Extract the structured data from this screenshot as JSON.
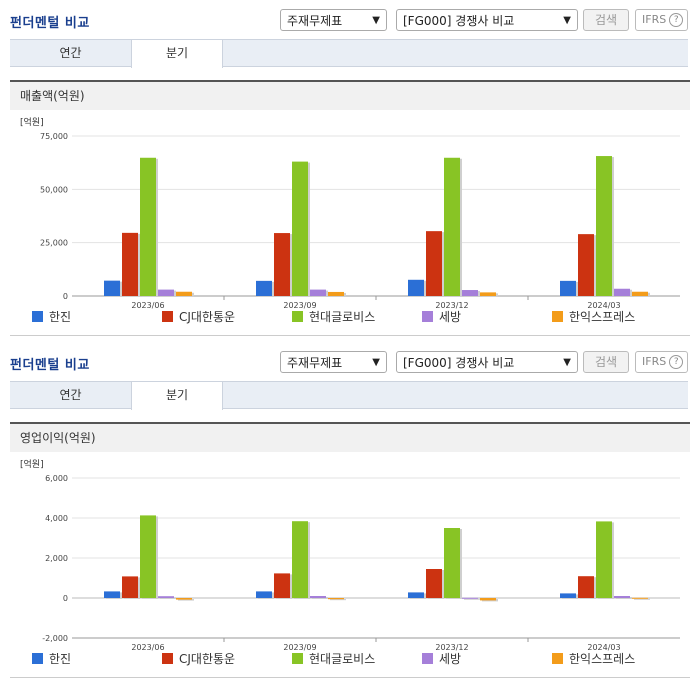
{
  "panels": [
    {
      "title": "펀더멘털 비교",
      "select1": "주재무제표",
      "select2": "[FG000] 경쟁사 비교",
      "search_label": "검색",
      "ifrs_label": "IFRS",
      "help_label": "?",
      "tabs": [
        {
          "label": "연간"
        },
        {
          "label": "분기"
        }
      ],
      "active_tab": 1,
      "chart_title": "매출액(억원)"
    },
    {
      "title": "펀더멘털 비교",
      "select1": "주재무제표",
      "select2": "[FG000] 경쟁사 비교",
      "search_label": "검색",
      "ifrs_label": "IFRS",
      "help_label": "?",
      "tabs": [
        {
          "label": "연간"
        },
        {
          "label": "분기"
        }
      ],
      "active_tab": 1,
      "chart_title": "영업이익(억원)"
    }
  ],
  "colors": {
    "series": [
      "#2b6fd6",
      "#cc3311",
      "#88c425",
      "#a57fd9",
      "#f39c1a"
    ]
  },
  "chart_data": [
    {
      "type": "bar",
      "unit_label": "[억원]",
      "categories": [
        "2023/06",
        "2023/09",
        "2023/12",
        "2024/03"
      ],
      "ylim": [
        0,
        75000
      ],
      "yticks": [
        0,
        25000,
        50000,
        75000
      ],
      "ytick_labels": [
        "0",
        "25,000",
        "50,000",
        "75,000"
      ],
      "grid": true,
      "legend": "bottom",
      "series": [
        {
          "name": "한진",
          "values": [
            7200,
            7100,
            7600,
            7100
          ]
        },
        {
          "name": "CJ대한통운",
          "values": [
            29600,
            29500,
            30400,
            29000
          ]
        },
        {
          "name": "현대글로비스",
          "values": [
            64800,
            63000,
            64800,
            65600
          ]
        },
        {
          "name": "세방",
          "values": [
            3000,
            3000,
            2800,
            3400
          ]
        },
        {
          "name": "한익스프레스",
          "values": [
            2000,
            1900,
            1700,
            2000
          ]
        }
      ]
    },
    {
      "type": "bar",
      "unit_label": "[억원]",
      "categories": [
        "2023/06",
        "2023/09",
        "2023/12",
        "2024/03"
      ],
      "ylim": [
        -2000,
        6000
      ],
      "yticks": [
        -2000,
        0,
        2000,
        4000,
        6000
      ],
      "ytick_labels": [
        "-2,000",
        "0",
        "2,000",
        "4,000",
        "6,000"
      ],
      "grid": true,
      "legend": "bottom",
      "series": [
        {
          "name": "한진",
          "values": [
            330,
            330,
            280,
            230
          ]
        },
        {
          "name": "CJ대한통운",
          "values": [
            1080,
            1230,
            1450,
            1090
          ]
        },
        {
          "name": "현대글로비스",
          "values": [
            4130,
            3840,
            3500,
            3830
          ]
        },
        {
          "name": "세방",
          "values": [
            90,
            100,
            10,
            100
          ]
        },
        {
          "name": "한익스프레스",
          "values": [
            -80,
            -60,
            -120,
            10
          ]
        }
      ]
    }
  ]
}
